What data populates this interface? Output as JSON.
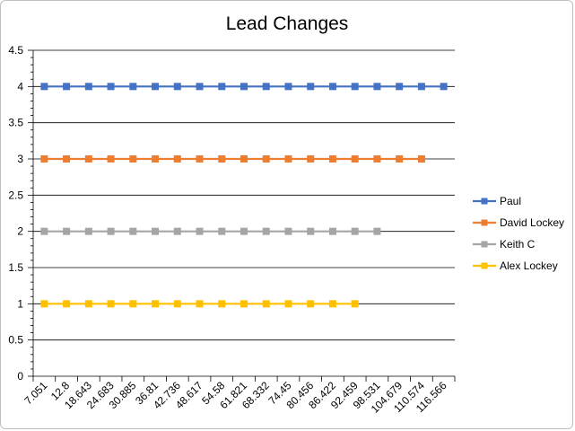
{
  "chart_data": {
    "type": "line",
    "title": "Lead Changes",
    "xlabel": "",
    "ylabel": "",
    "ylim": [
      0,
      4.5
    ],
    "y_ticks": [
      "0",
      "0.5",
      "1",
      "1.5",
      "2",
      "2.5",
      "3",
      "3.5",
      "4",
      "4.5"
    ],
    "categories": [
      "7.051",
      "12.8",
      "18.643",
      "24.683",
      "30.885",
      "36.81",
      "42.736",
      "48.617",
      "54.58",
      "61.821",
      "68.332",
      "74.45",
      "80.456",
      "86.422",
      "92.459",
      "98.531",
      "104.679",
      "110.574",
      "116.566"
    ],
    "grid": true,
    "legend_position": "right",
    "series": [
      {
        "name": "Paul",
        "color": "#4472C4",
        "values": [
          4,
          4,
          4,
          4,
          4,
          4,
          4,
          4,
          4,
          4,
          4,
          4,
          4,
          4,
          4,
          4,
          4,
          4,
          4
        ]
      },
      {
        "name": "David Lockey",
        "color": "#ED7D31",
        "values": [
          3,
          3,
          3,
          3,
          3,
          3,
          3,
          3,
          3,
          3,
          3,
          3,
          3,
          3,
          3,
          3,
          3,
          3,
          null
        ]
      },
      {
        "name": "Keith C",
        "color": "#A5A5A5",
        "values": [
          2,
          2,
          2,
          2,
          2,
          2,
          2,
          2,
          2,
          2,
          2,
          2,
          2,
          2,
          2,
          2,
          null,
          null,
          null
        ]
      },
      {
        "name": "Alex Lockey",
        "color": "#FFC000",
        "values": [
          1,
          1,
          1,
          1,
          1,
          1,
          1,
          1,
          1,
          1,
          1,
          1,
          1,
          1,
          1,
          null,
          null,
          null,
          null
        ]
      }
    ]
  }
}
